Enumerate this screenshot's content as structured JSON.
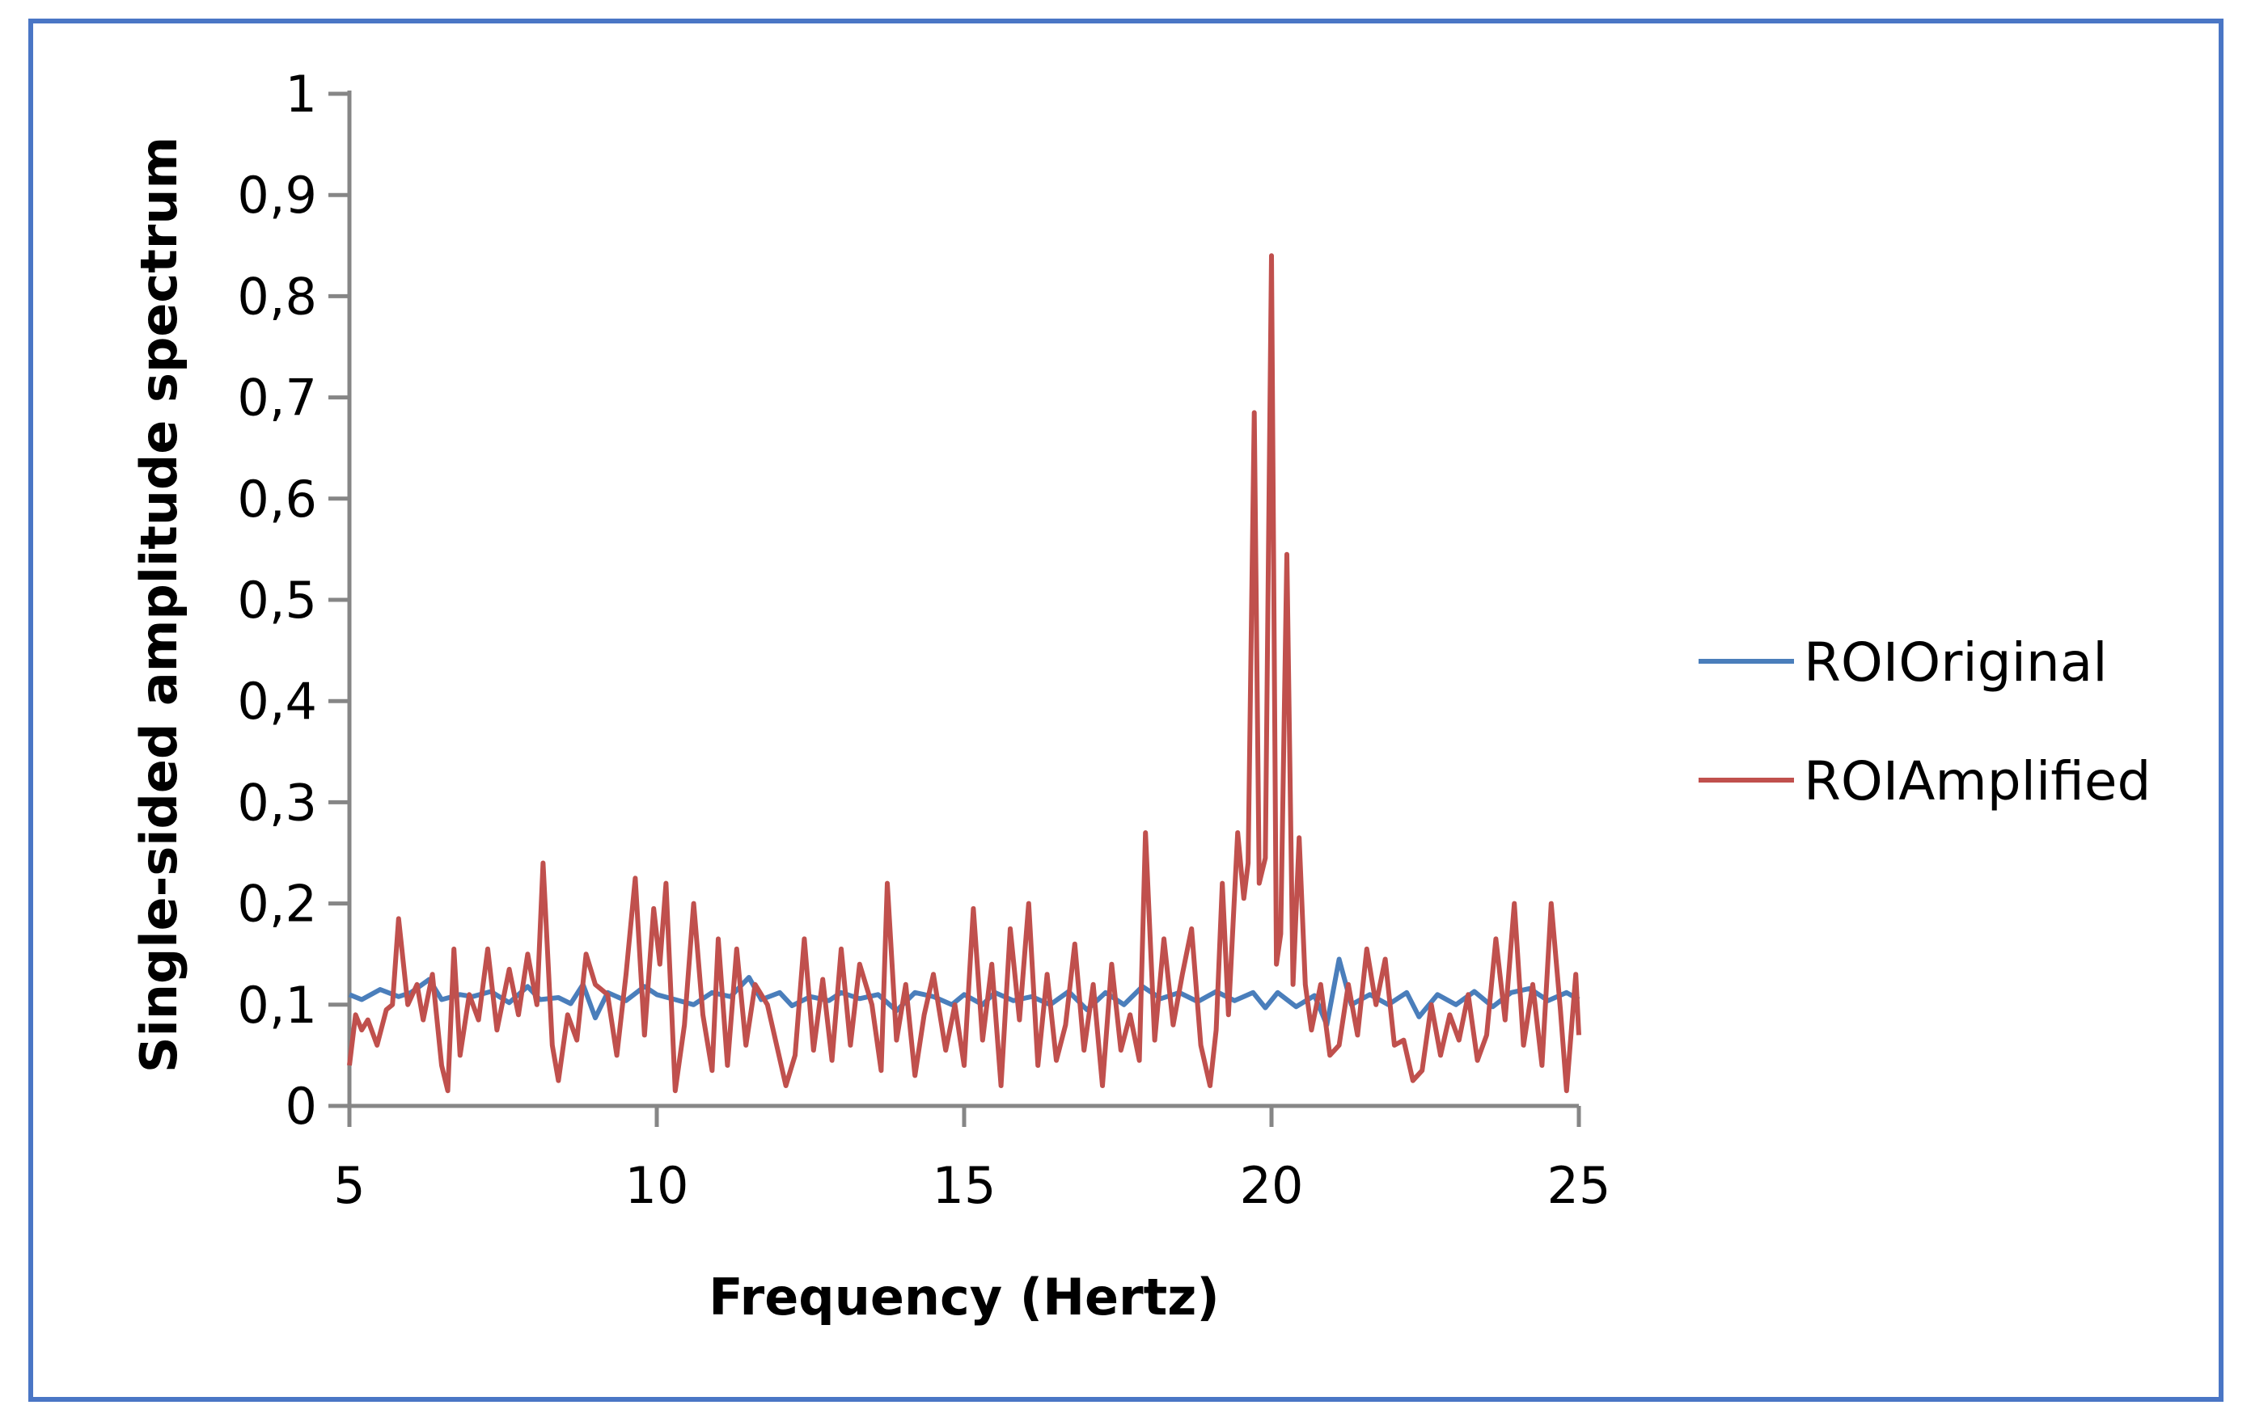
{
  "colors": {
    "frame_border": "#4a76c5",
    "axis": "#868686",
    "series_original": "#4a7ebb",
    "series_amplified": "#c0504d"
  },
  "chart_data": {
    "type": "line",
    "xlabel": "Frequency (Hertz)",
    "ylabel": "Single-sided amplitude spectrum",
    "xlim": [
      5,
      25
    ],
    "ylim": [
      0,
      1
    ],
    "x_ticks": [
      "5",
      "10",
      "15",
      "20",
      "25"
    ],
    "y_ticks": [
      "0",
      "0,1",
      "0,2",
      "0,3",
      "0,4",
      "0,5",
      "0,6",
      "0,7",
      "0,8",
      "0,9",
      "1"
    ],
    "grid": false,
    "legend_position": "right",
    "series": [
      {
        "name": "ROIOriginal",
        "color": "#4a7ebb",
        "points": [
          [
            5.0,
            0.11
          ],
          [
            5.2,
            0.105
          ],
          [
            5.5,
            0.115
          ],
          [
            5.8,
            0.108
          ],
          [
            6.0,
            0.112
          ],
          [
            6.3,
            0.125
          ],
          [
            6.5,
            0.105
          ],
          [
            6.8,
            0.11
          ],
          [
            7.0,
            0.108
          ],
          [
            7.3,
            0.113
          ],
          [
            7.6,
            0.102
          ],
          [
            7.9,
            0.118
          ],
          [
            8.1,
            0.105
          ],
          [
            8.4,
            0.107
          ],
          [
            8.6,
            0.101
          ],
          [
            8.8,
            0.12
          ],
          [
            9.0,
            0.087
          ],
          [
            9.2,
            0.112
          ],
          [
            9.5,
            0.104
          ],
          [
            9.8,
            0.118
          ],
          [
            10.0,
            0.11
          ],
          [
            10.3,
            0.105
          ],
          [
            10.6,
            0.1
          ],
          [
            10.9,
            0.112
          ],
          [
            11.2,
            0.108
          ],
          [
            11.5,
            0.127
          ],
          [
            11.7,
            0.105
          ],
          [
            12.0,
            0.112
          ],
          [
            12.2,
            0.099
          ],
          [
            12.5,
            0.108
          ],
          [
            12.8,
            0.104
          ],
          [
            13.0,
            0.112
          ],
          [
            13.3,
            0.106
          ],
          [
            13.6,
            0.11
          ],
          [
            13.9,
            0.094
          ],
          [
            14.2,
            0.112
          ],
          [
            14.5,
            0.108
          ],
          [
            14.8,
            0.1
          ],
          [
            15.0,
            0.11
          ],
          [
            15.3,
            0.1
          ],
          [
            15.5,
            0.112
          ],
          [
            15.8,
            0.104
          ],
          [
            16.1,
            0.108
          ],
          [
            16.4,
            0.1
          ],
          [
            16.7,
            0.113
          ],
          [
            17.0,
            0.095
          ],
          [
            17.3,
            0.112
          ],
          [
            17.6,
            0.1
          ],
          [
            17.9,
            0.118
          ],
          [
            18.2,
            0.106
          ],
          [
            18.5,
            0.112
          ],
          [
            18.8,
            0.103
          ],
          [
            19.1,
            0.113
          ],
          [
            19.4,
            0.104
          ],
          [
            19.7,
            0.112
          ],
          [
            19.9,
            0.097
          ],
          [
            20.1,
            0.112
          ],
          [
            20.4,
            0.098
          ],
          [
            20.7,
            0.109
          ],
          [
            20.9,
            0.08
          ],
          [
            21.1,
            0.145
          ],
          [
            21.3,
            0.1
          ],
          [
            21.6,
            0.11
          ],
          [
            21.9,
            0.1
          ],
          [
            22.2,
            0.112
          ],
          [
            22.4,
            0.088
          ],
          [
            22.7,
            0.11
          ],
          [
            23.0,
            0.1
          ],
          [
            23.3,
            0.113
          ],
          [
            23.6,
            0.098
          ],
          [
            23.9,
            0.112
          ],
          [
            24.2,
            0.116
          ],
          [
            24.5,
            0.104
          ],
          [
            24.8,
            0.112
          ],
          [
            25.0,
            0.105
          ]
        ]
      },
      {
        "name": "ROIAmplified",
        "color": "#c0504d",
        "points": [
          [
            5.0,
            0.04
          ],
          [
            5.1,
            0.09
          ],
          [
            5.2,
            0.075
          ],
          [
            5.3,
            0.085
          ],
          [
            5.45,
            0.06
          ],
          [
            5.6,
            0.095
          ],
          [
            5.7,
            0.1
          ],
          [
            5.8,
            0.185
          ],
          [
            5.95,
            0.1
          ],
          [
            6.1,
            0.12
          ],
          [
            6.2,
            0.085
          ],
          [
            6.35,
            0.13
          ],
          [
            6.5,
            0.04
          ],
          [
            6.6,
            0.015
          ],
          [
            6.7,
            0.155
          ],
          [
            6.8,
            0.05
          ],
          [
            6.95,
            0.11
          ],
          [
            7.1,
            0.085
          ],
          [
            7.25,
            0.155
          ],
          [
            7.4,
            0.075
          ],
          [
            7.6,
            0.135
          ],
          [
            7.75,
            0.09
          ],
          [
            7.9,
            0.15
          ],
          [
            8.05,
            0.1
          ],
          [
            8.15,
            0.24
          ],
          [
            8.3,
            0.06
          ],
          [
            8.4,
            0.025
          ],
          [
            8.55,
            0.09
          ],
          [
            8.7,
            0.065
          ],
          [
            8.85,
            0.15
          ],
          [
            9.0,
            0.12
          ],
          [
            9.2,
            0.11
          ],
          [
            9.35,
            0.05
          ],
          [
            9.5,
            0.13
          ],
          [
            9.65,
            0.225
          ],
          [
            9.8,
            0.07
          ],
          [
            9.95,
            0.195
          ],
          [
            10.05,
            0.14
          ],
          [
            10.15,
            0.22
          ],
          [
            10.3,
            0.015
          ],
          [
            10.45,
            0.08
          ],
          [
            10.6,
            0.2
          ],
          [
            10.75,
            0.09
          ],
          [
            10.9,
            0.035
          ],
          [
            11.0,
            0.165
          ],
          [
            11.15,
            0.04
          ],
          [
            11.3,
            0.155
          ],
          [
            11.45,
            0.06
          ],
          [
            11.6,
            0.12
          ],
          [
            11.8,
            0.1
          ],
          [
            11.95,
            0.06
          ],
          [
            12.1,
            0.02
          ],
          [
            12.25,
            0.05
          ],
          [
            12.4,
            0.165
          ],
          [
            12.55,
            0.055
          ],
          [
            12.7,
            0.125
          ],
          [
            12.85,
            0.045
          ],
          [
            13.0,
            0.155
          ],
          [
            13.15,
            0.06
          ],
          [
            13.3,
            0.14
          ],
          [
            13.5,
            0.1
          ],
          [
            13.65,
            0.035
          ],
          [
            13.75,
            0.22
          ],
          [
            13.9,
            0.065
          ],
          [
            14.05,
            0.12
          ],
          [
            14.2,
            0.03
          ],
          [
            14.35,
            0.09
          ],
          [
            14.5,
            0.13
          ],
          [
            14.7,
            0.055
          ],
          [
            14.85,
            0.1
          ],
          [
            15.0,
            0.04
          ],
          [
            15.15,
            0.195
          ],
          [
            15.3,
            0.065
          ],
          [
            15.45,
            0.14
          ],
          [
            15.6,
            0.02
          ],
          [
            15.75,
            0.175
          ],
          [
            15.9,
            0.085
          ],
          [
            16.05,
            0.2
          ],
          [
            16.2,
            0.04
          ],
          [
            16.35,
            0.13
          ],
          [
            16.5,
            0.045
          ],
          [
            16.65,
            0.08
          ],
          [
            16.8,
            0.16
          ],
          [
            16.95,
            0.055
          ],
          [
            17.1,
            0.12
          ],
          [
            17.25,
            0.02
          ],
          [
            17.4,
            0.14
          ],
          [
            17.55,
            0.055
          ],
          [
            17.7,
            0.09
          ],
          [
            17.85,
            0.045
          ],
          [
            17.95,
            0.27
          ],
          [
            18.1,
            0.065
          ],
          [
            18.25,
            0.165
          ],
          [
            18.4,
            0.08
          ],
          [
            18.55,
            0.13
          ],
          [
            18.7,
            0.175
          ],
          [
            18.85,
            0.06
          ],
          [
            19.0,
            0.02
          ],
          [
            19.1,
            0.075
          ],
          [
            19.2,
            0.22
          ],
          [
            19.3,
            0.09
          ],
          [
            19.45,
            0.27
          ],
          [
            19.55,
            0.205
          ],
          [
            19.62,
            0.24
          ],
          [
            19.72,
            0.685
          ],
          [
            19.8,
            0.22
          ],
          [
            19.9,
            0.245
          ],
          [
            20.0,
            0.84
          ],
          [
            20.08,
            0.14
          ],
          [
            20.15,
            0.17
          ],
          [
            20.25,
            0.545
          ],
          [
            20.35,
            0.12
          ],
          [
            20.45,
            0.265
          ],
          [
            20.55,
            0.12
          ],
          [
            20.65,
            0.075
          ],
          [
            20.8,
            0.12
          ],
          [
            20.95,
            0.05
          ],
          [
            21.1,
            0.06
          ],
          [
            21.25,
            0.12
          ],
          [
            21.4,
            0.07
          ],
          [
            21.55,
            0.155
          ],
          [
            21.7,
            0.1
          ],
          [
            21.85,
            0.145
          ],
          [
            22.0,
            0.06
          ],
          [
            22.15,
            0.065
          ],
          [
            22.3,
            0.025
          ],
          [
            22.45,
            0.035
          ],
          [
            22.6,
            0.1
          ],
          [
            22.75,
            0.05
          ],
          [
            22.9,
            0.09
          ],
          [
            23.05,
            0.065
          ],
          [
            23.2,
            0.11
          ],
          [
            23.35,
            0.045
          ],
          [
            23.5,
            0.07
          ],
          [
            23.65,
            0.165
          ],
          [
            23.8,
            0.085
          ],
          [
            23.95,
            0.2
          ],
          [
            24.1,
            0.06
          ],
          [
            24.25,
            0.12
          ],
          [
            24.4,
            0.04
          ],
          [
            24.55,
            0.2
          ],
          [
            24.7,
            0.095
          ],
          [
            24.8,
            0.015
          ],
          [
            24.95,
            0.13
          ],
          [
            25.0,
            0.07
          ]
        ]
      }
    ]
  }
}
